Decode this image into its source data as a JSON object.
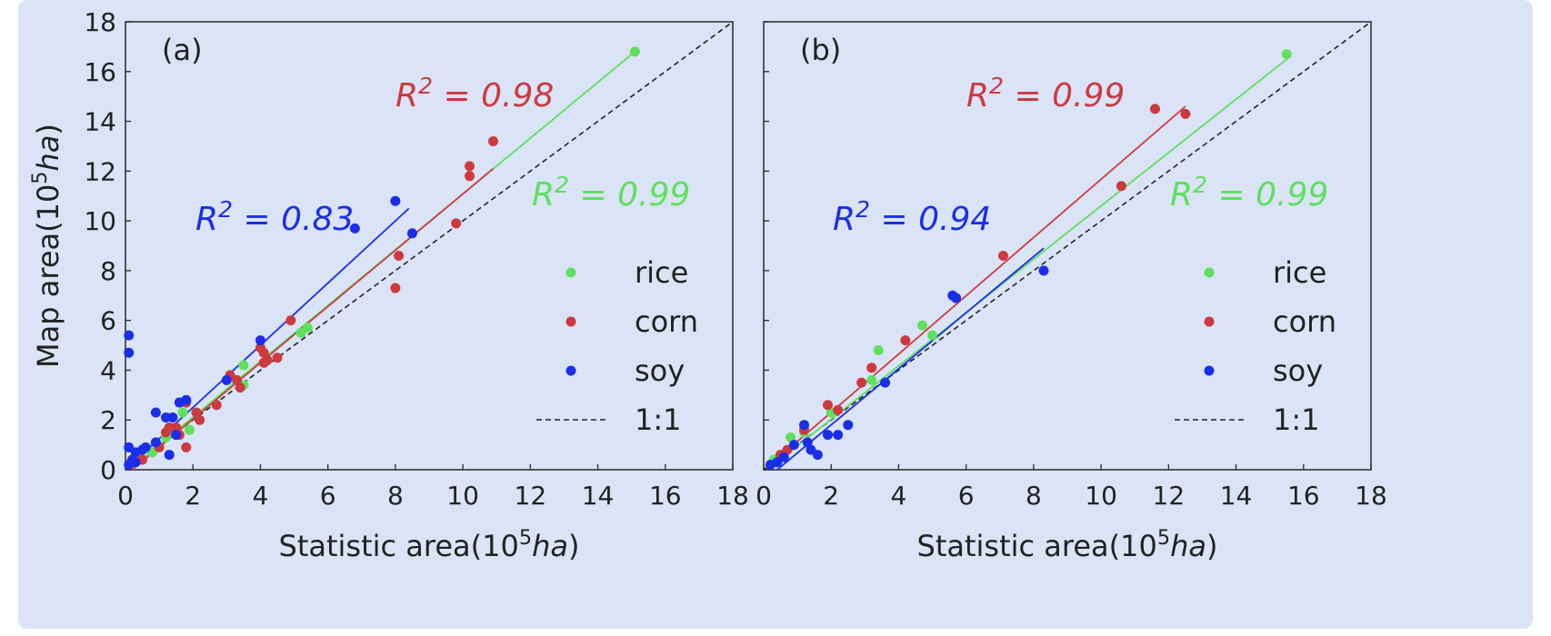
{
  "chart_data": [
    {
      "type": "scatter",
      "panel_label": "(a)",
      "xlabel": "Statistic area(10⁵ha)",
      "ylabel": "Map area(10⁵ha)",
      "xlim": [
        0,
        18
      ],
      "ylim": [
        0,
        18
      ],
      "xticks": [
        0,
        2,
        4,
        6,
        8,
        10,
        12,
        14,
        16,
        18
      ],
      "yticks": [
        0,
        2,
        4,
        6,
        8,
        10,
        12,
        14,
        16,
        18
      ],
      "grid": false,
      "legend_position": "lower-right",
      "reference_line": {
        "label": "1:1",
        "from": [
          0,
          0
        ],
        "to": [
          18,
          18
        ]
      },
      "series": [
        {
          "name": "rice",
          "color": "#5fe05f",
          "r2_label": "R² = 0.99",
          "fit": {
            "x": [
              0.2,
              15.1
            ],
            "y": [
              0.1,
              16.8
            ]
          },
          "points": [
            [
              15.1,
              16.8
            ],
            [
              5.2,
              5.5
            ],
            [
              5.4,
              5.7
            ],
            [
              3.5,
              4.2
            ],
            [
              3.5,
              3.4
            ],
            [
              1.7,
              2.3
            ],
            [
              1.9,
              1.6
            ],
            [
              1.5,
              1.5
            ],
            [
              0.8,
              0.7
            ],
            [
              1.2,
              1.3
            ],
            [
              0.4,
              0.5
            ],
            [
              0.2,
              0.3
            ]
          ]
        },
        {
          "name": "corn",
          "color": "#cc3a40",
          "r2_label": "R² = 0.98",
          "fit": {
            "x": [
              0.2,
              10.9
            ],
            "y": [
              0.0,
              12.1
            ]
          },
          "points": [
            [
              10.9,
              13.2
            ],
            [
              10.2,
              12.2
            ],
            [
              10.2,
              11.8
            ],
            [
              9.8,
              9.9
            ],
            [
              8.1,
              8.6
            ],
            [
              8.0,
              7.3
            ],
            [
              4.9,
              6.0
            ],
            [
              4.0,
              4.9
            ],
            [
              4.1,
              4.7
            ],
            [
              4.1,
              4.3
            ],
            [
              4.2,
              4.4
            ],
            [
              4.5,
              4.5
            ],
            [
              3.1,
              3.8
            ],
            [
              3.3,
              3.6
            ],
            [
              3.4,
              3.3
            ],
            [
              2.7,
              2.6
            ],
            [
              2.1,
              2.3
            ],
            [
              2.2,
              2.0
            ],
            [
              1.8,
              2.7
            ],
            [
              1.6,
              2.7
            ],
            [
              1.5,
              1.7
            ],
            [
              1.6,
              1.4
            ],
            [
              1.3,
              1.7
            ],
            [
              1.2,
              1.5
            ],
            [
              1.8,
              0.9
            ],
            [
              1.0,
              0.9
            ],
            [
              0.5,
              0.4
            ]
          ]
        },
        {
          "name": "soy",
          "color": "#1a2ee8",
          "r2_label": "R² = 0.83",
          "fit": {
            "x": [
              0.0,
              8.4
            ],
            "y": [
              0.0,
              10.5
            ]
          },
          "points": [
            [
              8.0,
              10.8
            ],
            [
              6.8,
              9.7
            ],
            [
              8.5,
              9.5
            ],
            [
              4.0,
              5.2
            ],
            [
              3.0,
              3.6
            ],
            [
              1.8,
              2.8
            ],
            [
              1.6,
              2.7
            ],
            [
              0.9,
              2.3
            ],
            [
              1.2,
              2.1
            ],
            [
              1.4,
              2.1
            ],
            [
              1.5,
              1.4
            ],
            [
              1.3,
              0.6
            ],
            [
              0.9,
              1.1
            ],
            [
              0.1,
              5.4
            ],
            [
              0.1,
              4.7
            ],
            [
              0.1,
              0.9
            ],
            [
              0.3,
              0.7
            ],
            [
              0.5,
              0.8
            ],
            [
              0.2,
              0.4
            ],
            [
              0.1,
              0.2
            ],
            [
              0.3,
              0.3
            ],
            [
              0.6,
              0.9
            ]
          ]
        }
      ]
    },
    {
      "type": "scatter",
      "panel_label": "(b)",
      "xlabel": "Statistic area(10⁵ha)",
      "xlim": [
        0,
        18
      ],
      "ylim": [
        0,
        18
      ],
      "xticks": [
        0,
        2,
        4,
        6,
        8,
        10,
        12,
        14,
        16,
        18
      ],
      "grid": false,
      "legend_position": "lower-right",
      "reference_line": {
        "label": "1:1",
        "from": [
          0,
          0
        ],
        "to": [
          18,
          18
        ]
      },
      "series": [
        {
          "name": "rice",
          "color": "#5fe05f",
          "r2_label": "R² = 0.99",
          "fit": {
            "x": [
              0.2,
              15.6
            ],
            "y": [
              0.1,
              16.6
            ]
          },
          "points": [
            [
              15.5,
              16.7
            ],
            [
              3.4,
              4.8
            ],
            [
              4.7,
              5.8
            ],
            [
              5.0,
              5.4
            ],
            [
              3.2,
              3.6
            ],
            [
              2.0,
              2.3
            ],
            [
              0.8,
              1.3
            ],
            [
              1.2,
              1.5
            ],
            [
              0.5,
              0.6
            ],
            [
              0.3,
              0.4
            ]
          ]
        },
        {
          "name": "corn",
          "color": "#cc3a40",
          "r2_label": "R² = 0.99",
          "fit": {
            "x": [
              0.2,
              12.5
            ],
            "y": [
              0.2,
              14.6
            ]
          },
          "points": [
            [
              11.6,
              14.5
            ],
            [
              12.5,
              14.3
            ],
            [
              10.6,
              11.4
            ],
            [
              7.1,
              8.6
            ],
            [
              5.7,
              6.9
            ],
            [
              4.2,
              5.2
            ],
            [
              3.2,
              4.1
            ],
            [
              2.9,
              3.5
            ],
            [
              1.9,
              2.6
            ],
            [
              2.2,
              2.4
            ],
            [
              1.2,
              1.6
            ],
            [
              0.7,
              0.8
            ],
            [
              0.5,
              0.6
            ]
          ]
        },
        {
          "name": "soy",
          "color": "#1a2ee8",
          "r2_label": "R² = 0.94",
          "fit": {
            "x": [
              0.4,
              8.3
            ],
            "y": [
              0.0,
              8.9
            ]
          },
          "points": [
            [
              8.3,
              8.0
            ],
            [
              5.6,
              7.0
            ],
            [
              5.7,
              6.9
            ],
            [
              3.6,
              3.5
            ],
            [
              2.5,
              1.8
            ],
            [
              2.2,
              1.4
            ],
            [
              1.9,
              1.4
            ],
            [
              1.2,
              1.8
            ],
            [
              1.4,
              0.8
            ],
            [
              1.6,
              0.6
            ],
            [
              1.3,
              1.1
            ],
            [
              0.9,
              1.0
            ],
            [
              0.6,
              0.5
            ],
            [
              0.4,
              0.3
            ],
            [
              0.2,
              0.2
            ]
          ]
        }
      ]
    }
  ]
}
